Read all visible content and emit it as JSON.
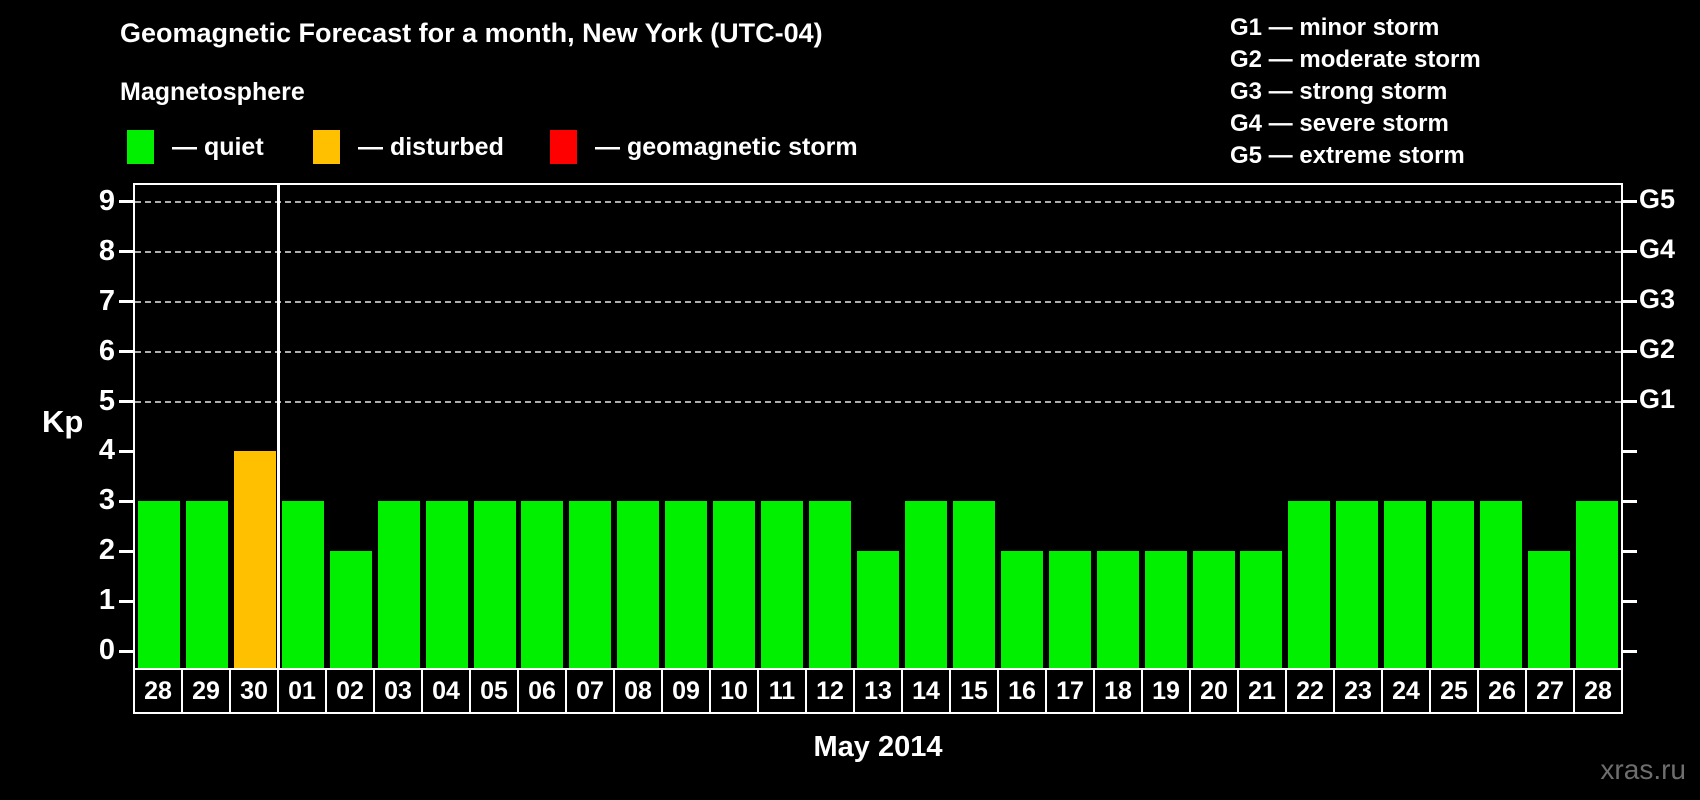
{
  "header": {
    "title": "Geomagnetic Forecast for a month, New York (UTC-04)",
    "subtitle": "Magnetosphere"
  },
  "legend": {
    "items": [
      {
        "name": "quiet",
        "label": "— quiet",
        "color": "#00f000"
      },
      {
        "name": "disturbed",
        "label": "— disturbed",
        "color": "#ffc000"
      },
      {
        "name": "storm",
        "label": "— geomagnetic storm",
        "color": "#ff0000"
      }
    ]
  },
  "storm_scale": {
    "lines": [
      "G1 — minor storm",
      "G2 — moderate storm",
      "G3 — strong storm",
      "G4 — severe storm",
      "G5 — extreme storm"
    ]
  },
  "axes": {
    "y_title": "Kp",
    "x_title": "May 2014"
  },
  "watermark": "xras.ru",
  "chart_data": {
    "type": "bar",
    "title": "Geomagnetic Forecast for a month, New York (UTC-04)",
    "xlabel": "May 2014",
    "ylabel": "Kp",
    "ylim": [
      0,
      9.5
    ],
    "yticks": [
      0,
      1,
      2,
      3,
      4,
      5,
      6,
      7,
      8,
      9
    ],
    "grid_levels": [
      5,
      6,
      7,
      8,
      9
    ],
    "grid_style": "dashed",
    "legend_position": "top",
    "right_axis": [
      {
        "label": "G1",
        "kp": 5
      },
      {
        "label": "G2",
        "kp": 6
      },
      {
        "label": "G3",
        "kp": 7
      },
      {
        "label": "G4",
        "kp": 8
      },
      {
        "label": "G5",
        "kp": 9
      }
    ],
    "categories": [
      "28",
      "29",
      "30",
      "01",
      "02",
      "03",
      "04",
      "05",
      "06",
      "07",
      "08",
      "09",
      "10",
      "11",
      "12",
      "13",
      "14",
      "15",
      "16",
      "17",
      "18",
      "19",
      "20",
      "21",
      "22",
      "23",
      "24",
      "25",
      "26",
      "27",
      "28"
    ],
    "values": [
      3,
      3,
      4,
      3,
      2,
      3,
      3,
      3,
      3,
      3,
      3,
      3,
      3,
      3,
      3,
      2,
      3,
      3,
      2,
      2,
      2,
      2,
      2,
      2,
      3,
      3,
      3,
      3,
      3,
      2,
      3
    ],
    "states": [
      "quiet",
      "quiet",
      "disturbed",
      "quiet",
      "quiet",
      "quiet",
      "quiet",
      "quiet",
      "quiet",
      "quiet",
      "quiet",
      "quiet",
      "quiet",
      "quiet",
      "quiet",
      "quiet",
      "quiet",
      "quiet",
      "quiet",
      "quiet",
      "quiet",
      "quiet",
      "quiet",
      "quiet",
      "quiet",
      "quiet",
      "quiet",
      "quiet",
      "quiet",
      "quiet",
      "quiet"
    ],
    "state_colors": {
      "quiet": "#00f000",
      "disturbed": "#ffc000",
      "storm": "#ff0000"
    },
    "month_separator_before_category_index": 3
  }
}
